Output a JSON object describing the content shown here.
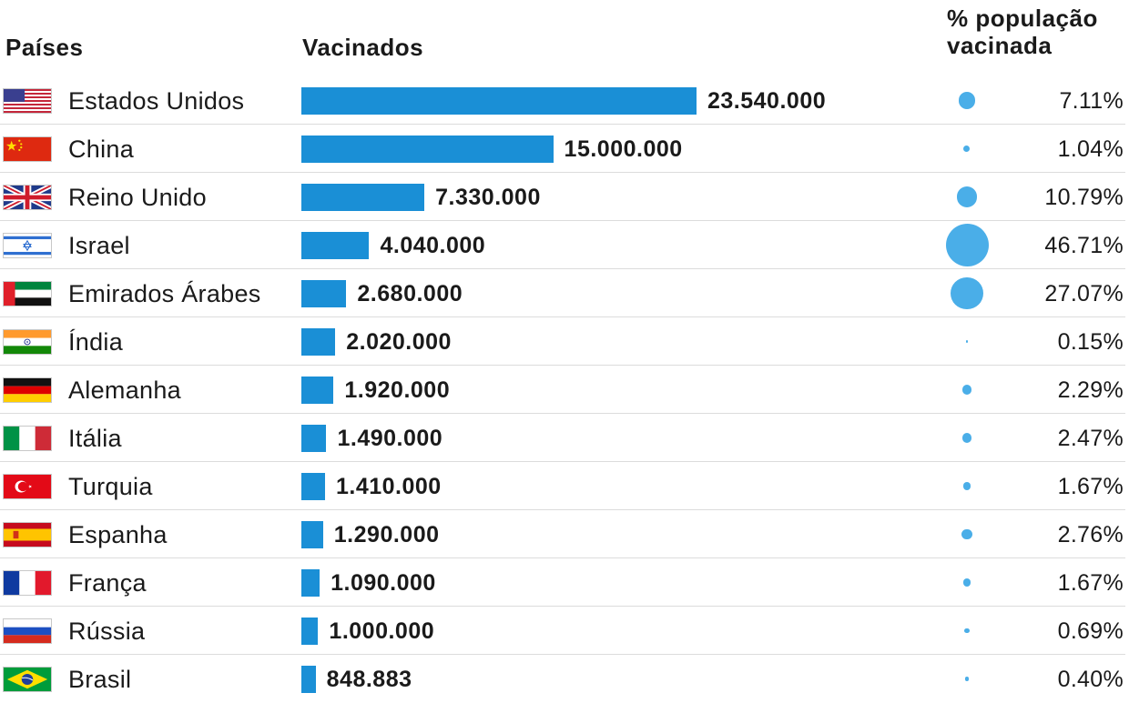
{
  "headers": {
    "countries": "Países",
    "vaccinated": "Vacinados",
    "pct": "% população\nvacinada"
  },
  "chart_data": {
    "type": "bar",
    "title": "",
    "categories": [
      "Estados Unidos",
      "China",
      "Reino Unido",
      "Israel",
      "Emirados Árabes",
      "Índia",
      "Alemanha",
      "Itália",
      "Turquia",
      "Espanha",
      "França",
      "Rússia",
      "Brasil"
    ],
    "series": [
      {
        "name": "Vacinados",
        "values": [
          23540000,
          15000000,
          7330000,
          4040000,
          2680000,
          2020000,
          1920000,
          1490000,
          1410000,
          1290000,
          1090000,
          1000000,
          848883
        ]
      },
      {
        "name": "% população vacinada",
        "values": [
          7.11,
          1.04,
          10.79,
          46.71,
          27.07,
          0.15,
          2.29,
          2.47,
          1.67,
          2.76,
          1.67,
          0.69,
          0.4
        ]
      }
    ],
    "value_labels": [
      "23.540.000",
      "15.000.000",
      "7.330.000",
      "4.040.000",
      "2.680.000",
      "2.020.000",
      "1.920.000",
      "1.490.000",
      "1.410.000",
      "1.290.000",
      "1.090.000",
      "1.000.000",
      "848.883"
    ],
    "pct_labels": [
      "7.11%",
      "1.04%",
      "10.79%",
      "46.71%",
      "27.07%",
      "0.15%",
      "2.29%",
      "2.47%",
      "1.67%",
      "2.76%",
      "1.67%",
      "0.69%",
      "0.40%"
    ],
    "flag_icons": [
      "flag-usa-icon",
      "flag-china-icon",
      "flag-uk-icon",
      "flag-israel-icon",
      "flag-uae-icon",
      "flag-india-icon",
      "flag-germany-icon",
      "flag-italy-icon",
      "flag-turkey-icon",
      "flag-spain-icon",
      "flag-france-icon",
      "flag-russia-icon",
      "flag-brazil-icon"
    ],
    "colors": {
      "bar": "#1a8fd6",
      "dot": "#4aaee8"
    }
  }
}
